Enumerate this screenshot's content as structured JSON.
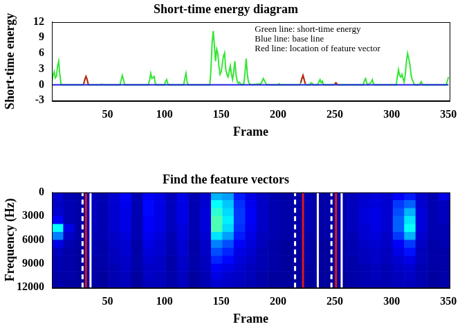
{
  "chart_data": [
    {
      "type": "line",
      "title": "Short-time energy diagram",
      "x_label": "Frame",
      "y_label": "Short-time energy",
      "annotations": [
        "Green line: short-time energy",
        "Blue line: base line",
        "Red line: location of feature vector"
      ],
      "x": [
        1,
        2,
        3,
        4,
        5,
        6,
        7,
        8,
        9,
        10,
        28,
        29,
        30,
        31,
        32,
        33,
        34,
        44,
        45,
        46,
        61,
        62,
        63,
        64,
        65,
        86,
        87,
        88,
        89,
        90,
        91,
        92,
        93,
        100,
        101,
        102,
        103,
        104,
        117,
        118,
        119,
        120,
        121,
        140,
        141,
        142,
        143,
        144,
        145,
        146,
        147,
        148,
        149,
        150,
        151,
        152,
        153,
        154,
        155,
        156,
        157,
        158,
        159,
        160,
        161,
        162,
        163,
        164,
        165,
        166,
        167,
        168,
        170,
        171,
        172,
        173,
        174,
        175,
        176,
        185,
        187,
        189,
        190,
        200,
        201,
        202,
        219,
        220,
        221,
        222,
        223,
        224,
        225,
        228,
        229,
        230,
        231,
        235,
        236,
        237,
        238,
        239,
        240,
        249,
        250,
        251,
        252,
        253,
        275,
        276,
        277,
        278,
        279,
        282,
        283,
        284,
        285,
        304,
        305,
        306,
        307,
        308,
        309,
        310,
        311,
        312,
        313,
        314,
        315,
        316,
        317,
        318,
        319,
        320,
        324,
        325,
        326,
        327,
        328,
        348,
        349,
        350
      ],
      "series": [
        {
          "color": "#33e633",
          "values": [
            0.5,
            1.8,
            2.5,
            1.3,
            1.6,
            3.5,
            4.5,
            2.0,
            0.2,
            0,
            0,
            0.2,
            1.0,
            1.6,
            1.0,
            0.1,
            0,
            0,
            0.15,
            0,
            0,
            1.0,
            1.8,
            1.0,
            0,
            0,
            1.0,
            2.2,
            1.2,
            1.4,
            1.6,
            0.3,
            0,
            0,
            0.6,
            1.0,
            0.2,
            0,
            0,
            1.2,
            2.2,
            0.5,
            0,
            0,
            3.0,
            8.0,
            10.3,
            7.5,
            4.5,
            6.8,
            6.0,
            3.5,
            2.0,
            2.5,
            4.0,
            5.5,
            6.1,
            3.0,
            2.0,
            1.5,
            2.5,
            3.6,
            2.0,
            1.0,
            2.5,
            4.5,
            2.0,
            0.8,
            0.3,
            0.5,
            0.2,
            0,
            0.3,
            2.5,
            5.0,
            2.0,
            0.5,
            0.2,
            0,
            0.2,
            1.2,
            0.4,
            0,
            0,
            0.2,
            0,
            0,
            0.4,
            1.2,
            1.8,
            1.0,
            0.2,
            0,
            0,
            0.4,
            0.3,
            0,
            0,
            0.6,
            1.0,
            0.4,
            0.7,
            0,
            0,
            0.2,
            0.4,
            0.1,
            0,
            0,
            0.8,
            1.2,
            0.4,
            0,
            0.5,
            1.0,
            0.2,
            0,
            0,
            1.5,
            2.9,
            1.8,
            1.5,
            2.0,
            1.2,
            0.5,
            2.0,
            4.5,
            6.0,
            5.0,
            4.0,
            2.0,
            1.0,
            0.6,
            0,
            0,
            0.2,
            0.6,
            0.1,
            0,
            0,
            0.7,
            1.5
          ]
        },
        {
          "color": "#1f1fe0",
          "values": [
            0,
            0,
            0,
            0,
            0,
            0,
            0,
            0,
            0,
            0,
            0,
            0,
            0,
            0,
            0,
            0,
            0,
            0,
            0,
            0,
            0,
            0,
            0,
            0,
            0,
            0,
            0,
            0,
            0,
            0,
            0,
            0,
            0,
            0,
            0,
            0,
            0,
            0,
            0,
            0,
            0,
            0,
            0,
            0,
            0,
            0,
            0,
            0,
            0,
            0,
            0,
            0,
            0,
            0,
            0,
            0,
            0,
            0,
            0,
            0,
            0,
            0,
            0,
            0,
            0,
            0,
            0,
            0,
            0,
            0,
            0,
            0,
            0,
            0,
            0,
            0,
            0,
            0,
            0,
            0,
            0,
            0,
            0,
            0,
            0,
            0,
            0,
            0,
            0,
            0,
            0,
            0,
            0,
            0,
            0,
            0,
            0,
            0,
            0,
            0,
            0,
            0,
            0,
            0,
            0,
            0,
            0,
            0,
            0,
            0,
            0,
            0,
            0,
            0,
            0,
            0,
            0,
            0,
            0,
            0,
            0,
            0,
            0,
            0,
            0,
            0,
            0,
            0,
            0,
            0,
            0,
            0,
            0,
            0,
            0,
            0,
            0,
            0,
            0,
            0,
            0,
            0
          ]
        },
        {
          "color": "#c81e1e",
          "values": [
            null,
            null,
            null,
            null,
            null,
            null,
            null,
            null,
            null,
            null,
            null,
            0.2,
            1.0,
            1.6,
            1.0,
            0.1,
            null,
            null,
            null,
            null,
            null,
            null,
            null,
            null,
            null,
            null,
            null,
            null,
            null,
            null,
            null,
            null,
            null,
            null,
            null,
            null,
            null,
            null,
            null,
            null,
            null,
            null,
            null,
            null,
            null,
            null,
            null,
            null,
            null,
            null,
            null,
            null,
            null,
            null,
            null,
            null,
            null,
            null,
            null,
            null,
            null,
            null,
            null,
            null,
            null,
            null,
            null,
            null,
            null,
            null,
            null,
            null,
            null,
            null,
            null,
            null,
            null,
            null,
            null,
            null,
            null,
            null,
            null,
            null,
            null,
            null,
            null,
            0.4,
            1.2,
            1.8,
            1.0,
            0.2,
            null,
            null,
            null,
            null,
            null,
            null,
            null,
            null,
            null,
            null,
            null,
            null,
            0.2,
            0.4,
            0.1,
            null,
            null,
            null,
            null,
            null,
            null,
            null,
            null,
            null,
            null,
            null,
            null,
            null,
            null,
            null,
            null,
            null,
            null,
            null,
            null,
            null,
            null,
            null,
            null,
            null,
            null,
            null,
            null,
            null,
            null,
            null,
            null,
            null,
            null,
            null
          ]
        }
      ],
      "xlim": [
        1,
        351
      ],
      "xticks": [
        50,
        100,
        150,
        200,
        250,
        300,
        350
      ],
      "ylim": [
        -3,
        12
      ],
      "yticks": [
        -3,
        0,
        3,
        6,
        9,
        12
      ],
      "grid": false
    },
    {
      "type": "heatmap",
      "title": "Find the feature vectors",
      "x_label": "Frame",
      "y_label": "Frequency (Hz)",
      "x_bins": [
        1,
        11,
        21,
        31,
        41,
        51,
        61,
        71,
        81,
        91,
        101,
        111,
        121,
        131,
        141,
        151,
        161,
        171,
        181,
        191,
        201,
        211,
        221,
        231,
        241,
        251,
        261,
        271,
        281,
        291,
        301,
        311,
        321,
        331,
        341,
        351
      ],
      "y_bins": [
        0,
        1000,
        2000,
        3000,
        4000,
        5000,
        6000,
        7000,
        8000,
        9000,
        10000,
        11000,
        12000
      ],
      "cells": [
        [
          0.08,
          0.05,
          0.04,
          0.06,
          0.05,
          0.08,
          0.12,
          0.05,
          0.12,
          0.1,
          0.06,
          0.1,
          0.05,
          0.08,
          0.3,
          0.28,
          0.15,
          0.1,
          0.07,
          0.05,
          0.04,
          0.04,
          0.05,
          0.04,
          0.04,
          0.05,
          0.06,
          0.08,
          0.09,
          0.08,
          0.12,
          0.15,
          0.08,
          0.05,
          0.1
        ],
        [
          0.07,
          0.05,
          0.04,
          0.06,
          0.05,
          0.08,
          0.11,
          0.05,
          0.13,
          0.1,
          0.06,
          0.1,
          0.05,
          0.08,
          0.38,
          0.32,
          0.17,
          0.11,
          0.07,
          0.05,
          0.04,
          0.04,
          0.05,
          0.04,
          0.04,
          0.05,
          0.06,
          0.08,
          0.09,
          0.08,
          0.18,
          0.22,
          0.08,
          0.05,
          0.06
        ],
        [
          0.08,
          0.05,
          0.04,
          0.06,
          0.05,
          0.08,
          0.1,
          0.05,
          0.13,
          0.1,
          0.06,
          0.1,
          0.05,
          0.09,
          0.42,
          0.34,
          0.18,
          0.12,
          0.07,
          0.05,
          0.04,
          0.04,
          0.05,
          0.04,
          0.04,
          0.05,
          0.06,
          0.09,
          0.1,
          0.08,
          0.2,
          0.3,
          0.09,
          0.05,
          0.06
        ],
        [
          0.12,
          0.05,
          0.04,
          0.06,
          0.05,
          0.08,
          0.1,
          0.05,
          0.12,
          0.1,
          0.06,
          0.1,
          0.05,
          0.09,
          0.45,
          0.36,
          0.18,
          0.12,
          0.07,
          0.05,
          0.04,
          0.04,
          0.05,
          0.04,
          0.04,
          0.05,
          0.06,
          0.09,
          0.1,
          0.08,
          0.22,
          0.35,
          0.09,
          0.05,
          0.06
        ],
        [
          0.38,
          0.1,
          0.04,
          0.06,
          0.05,
          0.08,
          0.1,
          0.05,
          0.12,
          0.1,
          0.06,
          0.09,
          0.05,
          0.09,
          0.45,
          0.34,
          0.17,
          0.11,
          0.07,
          0.05,
          0.04,
          0.04,
          0.05,
          0.04,
          0.04,
          0.05,
          0.06,
          0.08,
          0.1,
          0.08,
          0.22,
          0.38,
          0.09,
          0.05,
          0.05
        ],
        [
          0.25,
          0.07,
          0.04,
          0.05,
          0.05,
          0.07,
          0.09,
          0.05,
          0.11,
          0.09,
          0.05,
          0.09,
          0.05,
          0.08,
          0.35,
          0.28,
          0.15,
          0.1,
          0.06,
          0.05,
          0.04,
          0.04,
          0.04,
          0.04,
          0.04,
          0.05,
          0.05,
          0.08,
          0.09,
          0.07,
          0.18,
          0.3,
          0.08,
          0.05,
          0.05
        ],
        [
          0.1,
          0.05,
          0.03,
          0.05,
          0.04,
          0.07,
          0.08,
          0.04,
          0.1,
          0.08,
          0.05,
          0.08,
          0.04,
          0.07,
          0.25,
          0.2,
          0.12,
          0.09,
          0.06,
          0.04,
          0.03,
          0.03,
          0.04,
          0.03,
          0.03,
          0.04,
          0.05,
          0.07,
          0.08,
          0.07,
          0.12,
          0.18,
          0.07,
          0.04,
          0.05
        ],
        [
          0.06,
          0.04,
          0.03,
          0.05,
          0.04,
          0.06,
          0.08,
          0.04,
          0.09,
          0.08,
          0.05,
          0.08,
          0.04,
          0.07,
          0.2,
          0.16,
          0.1,
          0.08,
          0.05,
          0.04,
          0.03,
          0.03,
          0.04,
          0.03,
          0.03,
          0.04,
          0.05,
          0.06,
          0.07,
          0.06,
          0.1,
          0.14,
          0.06,
          0.04,
          0.04
        ],
        [
          0.05,
          0.04,
          0.03,
          0.04,
          0.04,
          0.06,
          0.07,
          0.04,
          0.08,
          0.07,
          0.04,
          0.07,
          0.04,
          0.06,
          0.16,
          0.13,
          0.09,
          0.07,
          0.05,
          0.04,
          0.03,
          0.03,
          0.04,
          0.03,
          0.03,
          0.04,
          0.04,
          0.06,
          0.07,
          0.06,
          0.08,
          0.1,
          0.06,
          0.04,
          0.04
        ],
        [
          0.05,
          0.04,
          0.03,
          0.04,
          0.04,
          0.05,
          0.07,
          0.04,
          0.07,
          0.07,
          0.04,
          0.07,
          0.04,
          0.06,
          0.12,
          0.1,
          0.08,
          0.06,
          0.05,
          0.04,
          0.03,
          0.03,
          0.03,
          0.03,
          0.03,
          0.04,
          0.04,
          0.05,
          0.06,
          0.05,
          0.07,
          0.08,
          0.05,
          0.04,
          0.04
        ],
        [
          0.04,
          0.04,
          0.03,
          0.04,
          0.03,
          0.05,
          0.06,
          0.03,
          0.07,
          0.06,
          0.04,
          0.06,
          0.03,
          0.05,
          0.1,
          0.08,
          0.07,
          0.06,
          0.04,
          0.03,
          0.03,
          0.03,
          0.03,
          0.03,
          0.03,
          0.03,
          0.04,
          0.05,
          0.06,
          0.05,
          0.06,
          0.07,
          0.05,
          0.03,
          0.04
        ],
        [
          0.04,
          0.03,
          0.03,
          0.04,
          0.03,
          0.05,
          0.06,
          0.03,
          0.06,
          0.06,
          0.04,
          0.06,
          0.03,
          0.05,
          0.08,
          0.07,
          0.06,
          0.05,
          0.04,
          0.03,
          0.03,
          0.03,
          0.03,
          0.03,
          0.03,
          0.03,
          0.04,
          0.05,
          0.05,
          0.05,
          0.06,
          0.06,
          0.05,
          0.03,
          0.04
        ]
      ],
      "zlim": [
        0,
        1
      ],
      "lines": [
        {
          "x": 28,
          "color": "#ffffff",
          "line_style": "dashed"
        },
        {
          "x": 31,
          "color": "#e01818",
          "line_style": "solid"
        },
        {
          "x": 35,
          "color": "#ffffff",
          "line_style": "solid"
        },
        {
          "x": 215,
          "color": "#ffffff",
          "line_style": "dashed"
        },
        {
          "x": 222,
          "color": "#e01818",
          "line_style": "solid"
        },
        {
          "x": 235,
          "color": "#ffffff",
          "line_style": "solid"
        },
        {
          "x": 247,
          "color": "#ffffff",
          "line_style": "dashed"
        },
        {
          "x": 251,
          "color": "#e01818",
          "line_style": "solid"
        },
        {
          "x": 256,
          "color": "#ffffff",
          "line_style": "solid"
        }
      ],
      "xlim": [
        1,
        351
      ],
      "xticks": [
        50,
        100,
        150,
        200,
        250,
        300,
        350
      ],
      "ylim": [
        12000,
        0
      ],
      "yticks": [
        0,
        3000,
        6000,
        9000,
        12000
      ],
      "grid": false
    }
  ]
}
